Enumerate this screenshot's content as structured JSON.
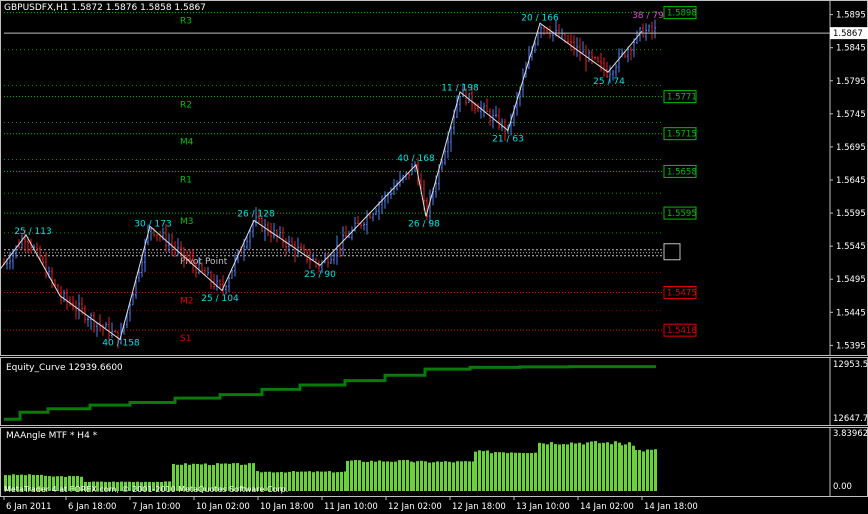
{
  "chart_data": [
    {
      "type": "line",
      "title": "GBPUSDFX,H1  1.5872 1.5876 1.5858 1.5867",
      "price_axis_ticks": [
        "1.5895",
        "1.5845",
        "1.5795",
        "1.5745",
        "1.5695",
        "1.5645",
        "1.5595",
        "1.5545",
        "1.5495",
        "1.5445",
        "1.5395"
      ],
      "current_price": "1.5867",
      "ylim": [
        1.5385,
        1.5905
      ],
      "levels": [
        {
          "name": "R3",
          "value": 1.5898,
          "label": "1.5898",
          "color": "#00c000"
        },
        {
          "name": "R2",
          "value": 1.5771,
          "label": "1.5771",
          "color": "#00c000"
        },
        {
          "name": "M4",
          "value": 1.5715,
          "label": "1.5715",
          "color": "#00c000"
        },
        {
          "name": "R1",
          "value": 1.5658,
          "label": "1.5658",
          "color": "#00c000"
        },
        {
          "name": "M3",
          "value": 1.5595,
          "label": "1.5595",
          "color": "#00c000"
        },
        {
          "name": "Pivot Point",
          "value": 1.5535,
          "label": "",
          "color": "#c0c0c0"
        },
        {
          "name": "M2",
          "value": 1.5475,
          "label": "1.5475",
          "color": "#e00000"
        },
        {
          "name": "S1",
          "value": 1.5418,
          "label": "1.5418",
          "color": "#e00000"
        }
      ],
      "extra_level_lines": [
        1.5842,
        1.5788,
        1.5732,
        1.5676,
        1.5625,
        1.5565,
        1.5505,
        1.5448
      ],
      "zigzag": [
        {
          "x": 0,
          "y": 1.551
        },
        {
          "x": 26,
          "y": 1.5562
        },
        {
          "x": 60,
          "y": 1.547
        },
        {
          "x": 120,
          "y": 1.5404
        },
        {
          "x": 150,
          "y": 1.5575
        },
        {
          "x": 222,
          "y": 1.5478
        },
        {
          "x": 254,
          "y": 1.5584
        },
        {
          "x": 320,
          "y": 1.5516
        },
        {
          "x": 416,
          "y": 1.5668
        },
        {
          "x": 426,
          "y": 1.559
        },
        {
          "x": 460,
          "y": 1.5778
        },
        {
          "x": 508,
          "y": 1.572
        },
        {
          "x": 540,
          "y": 1.5882
        },
        {
          "x": 608,
          "y": 1.5808
        },
        {
          "x": 642,
          "y": 1.587
        }
      ],
      "zigzag_labels": [
        {
          "text": "25 / 113",
          "x": 33,
          "y": 1.5563,
          "color": "#00e0e0"
        },
        {
          "text": "40 / 158",
          "x": 121,
          "y": 1.5395,
          "color": "#00e0e0"
        },
        {
          "text": "30 / 173",
          "x": 153,
          "y": 1.5575,
          "color": "#00e0e0"
        },
        {
          "text": "25 / 104",
          "x": 220,
          "y": 1.5462,
          "color": "#00e0e0"
        },
        {
          "text": "26 / 128",
          "x": 256,
          "y": 1.559,
          "color": "#00e0e0"
        },
        {
          "text": "25 / 90",
          "x": 320,
          "y": 1.5498,
          "color": "#00e0e0"
        },
        {
          "text": "40 / 168",
          "x": 416,
          "y": 1.5674,
          "color": "#00e0e0"
        },
        {
          "text": "26 / 98",
          "x": 424,
          "y": 1.5575,
          "color": "#00e0e0"
        },
        {
          "text": "11 / 198",
          "x": 460,
          "y": 1.578,
          "color": "#00e0e0"
        },
        {
          "text": "21 / 63",
          "x": 508,
          "y": 1.5703,
          "color": "#00e0e0"
        },
        {
          "text": "20 / 166",
          "x": 540,
          "y": 1.5886,
          "color": "#00e0e0"
        },
        {
          "text": "25 / 74",
          "x": 609,
          "y": 1.579,
          "color": "#00e0e0"
        },
        {
          "text": "38 / 79",
          "x": 648,
          "y": 1.589,
          "color": "#e040e0"
        }
      ]
    },
    {
      "type": "line",
      "title": "Equity_Curve 12939.6600",
      "axis_ticks": [
        "12953.5",
        "12647.7"
      ],
      "ylim": [
        12630,
        12960
      ],
      "x": [
        4,
        20,
        48,
        90,
        130,
        175,
        220,
        262,
        300,
        345,
        385,
        425,
        470,
        520,
        570,
        656
      ],
      "values": [
        12640,
        12680,
        12700,
        12720,
        12735,
        12760,
        12780,
        12810,
        12835,
        12860,
        12890,
        12925,
        12935,
        12938,
        12939.66,
        12939.66
      ]
    },
    {
      "type": "bar",
      "title": "MAAngle MTF * H4 *",
      "axis_ticks": [
        "3.83962",
        "0.00"
      ],
      "ylim": [
        0,
        3.9
      ],
      "groups": [
        {
          "start": 4,
          "end": 44,
          "value": 1.05
        },
        {
          "start": 44,
          "end": 84,
          "value": 0.95
        },
        {
          "start": 84,
          "end": 172,
          "value": 0.6
        },
        {
          "start": 172,
          "end": 256,
          "value": 1.75
        },
        {
          "start": 256,
          "end": 346,
          "value": 1.25
        },
        {
          "start": 346,
          "end": 412,
          "value": 1.95
        },
        {
          "start": 412,
          "end": 474,
          "value": 1.9
        },
        {
          "start": 474,
          "end": 538,
          "value": 2.55
        },
        {
          "start": 538,
          "end": 620,
          "value": 3.15
        },
        {
          "start": 620,
          "end": 634,
          "value": 3.05
        },
        {
          "start": 634,
          "end": 656,
          "value": 2.65
        }
      ]
    }
  ],
  "time_axis": [
    "6 Jan 2011",
    "6 Jan 18:00",
    "7 Jan 10:00",
    "10 Jan 02:00",
    "10 Jan 18:00",
    "11 Jan 10:00",
    "12 Jan 02:00",
    "12 Jan 18:00",
    "13 Jan 10:00",
    "14 Jan 02:00",
    "14 Jan 18:00"
  ],
  "watermark": "MetaTrader 4 at FOREX.com, © 2001-2010 MetaQuotes Software Corp.",
  "colors": {
    "bull": "#4f7ff0",
    "bear": "#e02020",
    "equity": "#0a7a0a",
    "histogram": "#6ad040",
    "zigzag": "#e0e0e0"
  }
}
